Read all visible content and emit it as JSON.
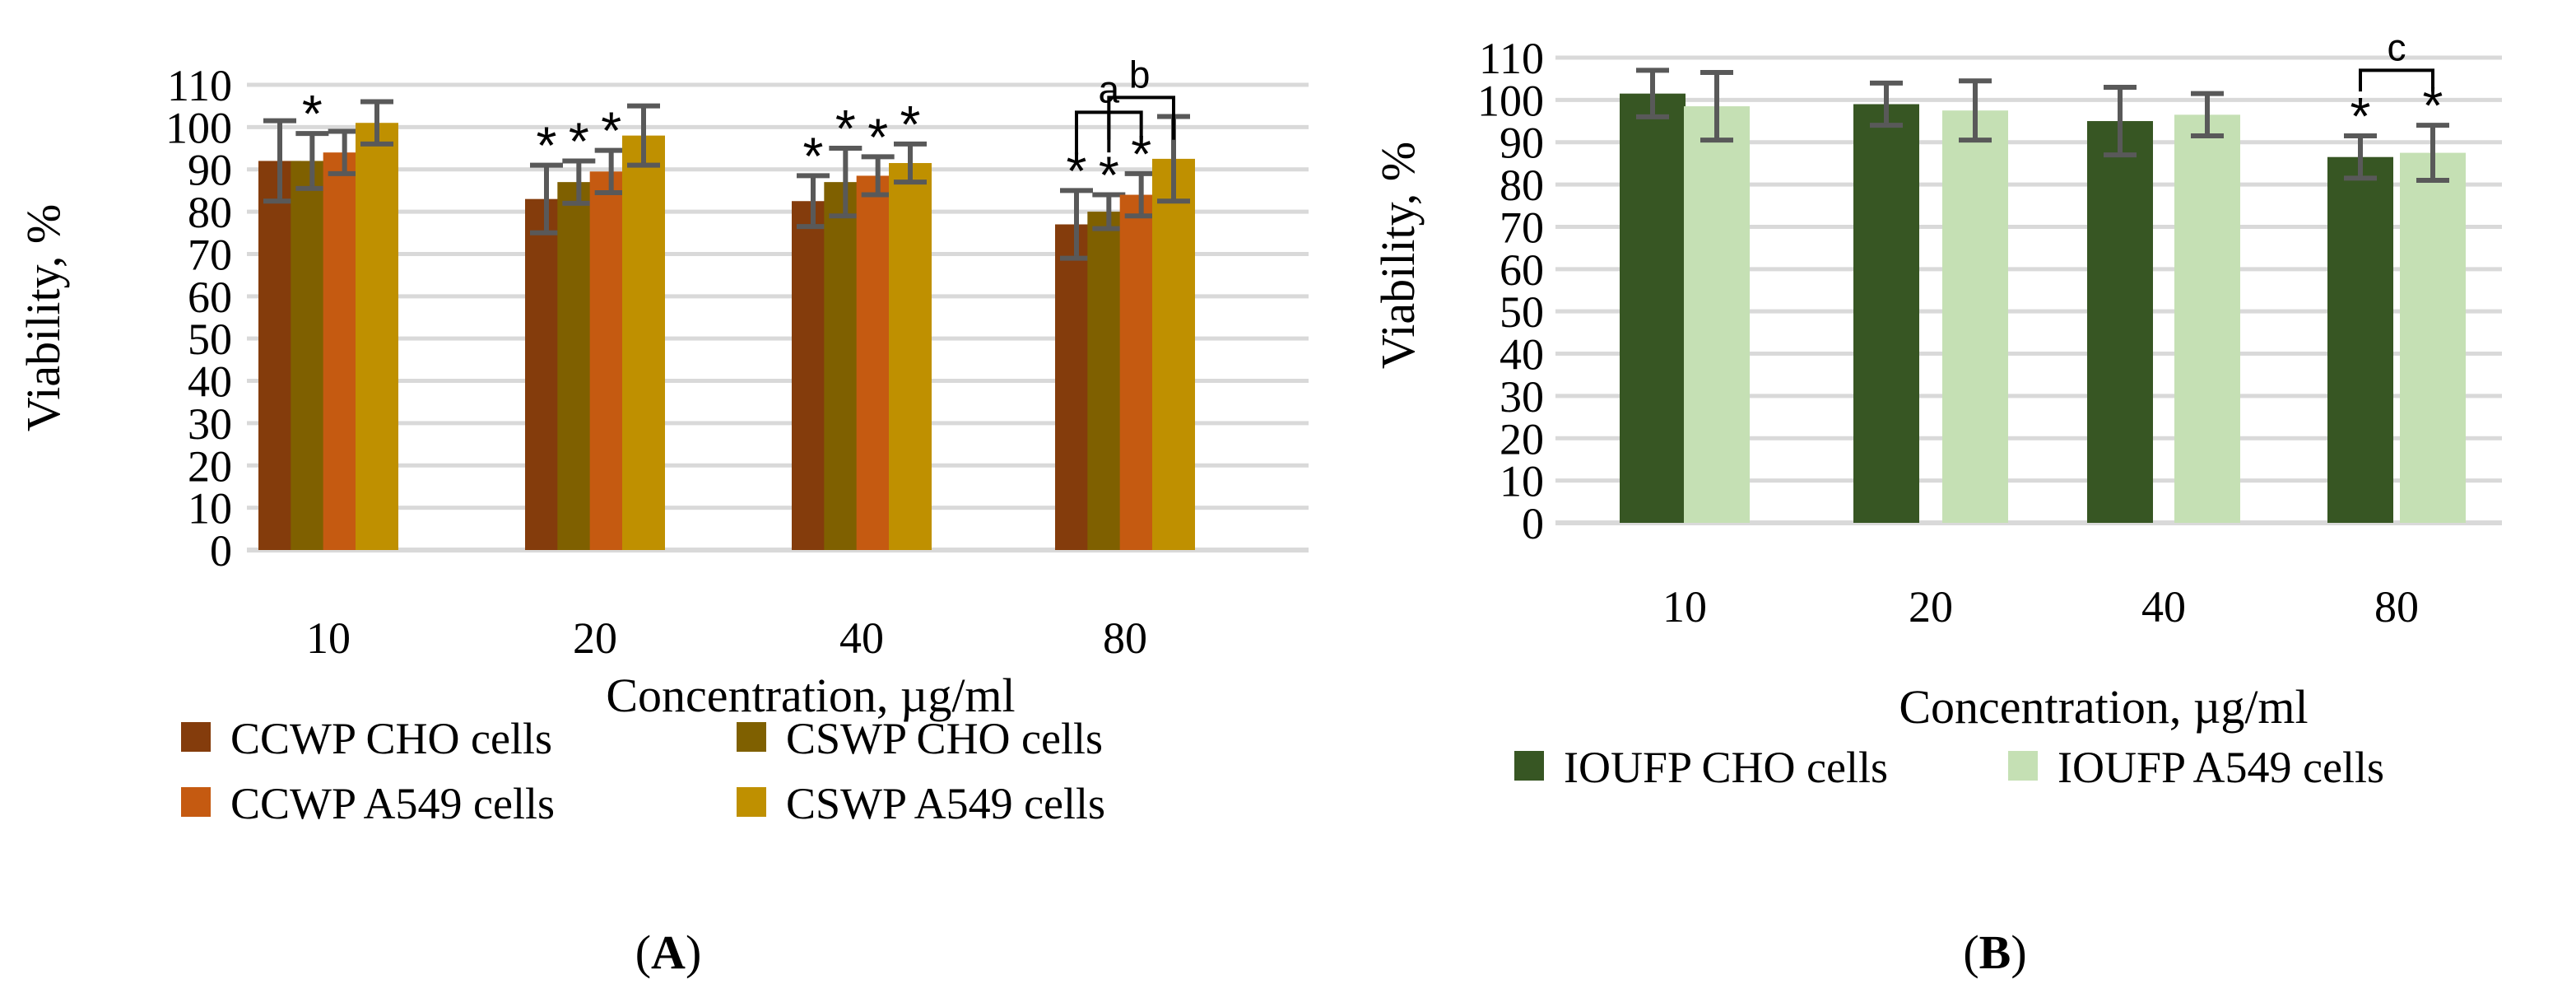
{
  "colors": {
    "grid": "#d9d9d9",
    "error_bar": "#595959",
    "text": "#000000"
  },
  "chart_data": [
    {
      "panel": "A",
      "type": "bar",
      "panel_label": "A",
      "xlabel": "Concentration, µg/ml",
      "ylabel": "Viability, %",
      "ylim": [
        0,
        110
      ],
      "yticks": [
        "0",
        "10",
        "20",
        "30",
        "40",
        "50",
        "60",
        "70",
        "80",
        "90",
        "100",
        "110"
      ],
      "grid": true,
      "legend_position": "bottom",
      "categories": [
        "10",
        "20",
        "40",
        "80"
      ],
      "series": [
        {
          "name": "CCWP CHO cells",
          "color": "#843c0c",
          "values": [
            92,
            83,
            82.5,
            77
          ],
          "errors": [
            9.5,
            8,
            6,
            8
          ],
          "significant": [
            false,
            true,
            true,
            true
          ]
        },
        {
          "name": "CSWP CHO cells",
          "color": "#7f6000",
          "values": [
            92,
            87,
            87,
            80
          ],
          "errors": [
            6.5,
            5,
            8,
            4
          ],
          "significant": [
            true,
            true,
            true,
            true
          ]
        },
        {
          "name": "CCWP A549 cells",
          "color": "#c55a11",
          "values": [
            94,
            89.5,
            88.5,
            84
          ],
          "errors": [
            5,
            5,
            4.5,
            5
          ],
          "significant": [
            false,
            true,
            true,
            true
          ]
        },
        {
          "name": "CSWP A549 cells",
          "color": "#bf9000",
          "values": [
            101,
            98,
            91.5,
            92.5
          ],
          "errors": [
            5,
            7,
            4.5,
            10
          ],
          "significant": [
            false,
            false,
            true,
            false
          ]
        }
      ],
      "significance_marker": "*",
      "brackets": [
        {
          "label": "a",
          "category": "80",
          "from_series": 0,
          "to_series": 2,
          "middle_series": 1
        },
        {
          "label": "b",
          "category": "80",
          "from_series": 1,
          "to_series": 3
        }
      ]
    },
    {
      "panel": "B",
      "type": "bar",
      "panel_label": "B",
      "xlabel": "Concentration, µg/ml",
      "ylabel": "Viability, %",
      "ylim": [
        0,
        110
      ],
      "yticks": [
        "0",
        "10",
        "20",
        "30",
        "40",
        "50",
        "60",
        "70",
        "80",
        "90",
        "100",
        "110"
      ],
      "grid": true,
      "legend_position": "bottom",
      "categories": [
        "10",
        "20",
        "40",
        "80"
      ],
      "series": [
        {
          "name": "IOUFP CHO cells",
          "color": "#375623",
          "values": [
            101.5,
            99,
            95,
            86.5
          ],
          "errors": [
            5.5,
            5,
            8,
            5
          ],
          "significant": [
            false,
            false,
            false,
            true
          ]
        },
        {
          "name": "IOUFP A549 cells",
          "color": "#c5e0b4",
          "values": [
            98.5,
            97.5,
            96.5,
            87.5
          ],
          "errors": [
            8,
            7,
            5,
            6.5
          ],
          "significant": [
            false,
            false,
            false,
            true
          ]
        }
      ],
      "significance_marker": "*",
      "brackets": [
        {
          "label": "c",
          "category": "80",
          "from_series": 0,
          "to_series": 1
        }
      ]
    }
  ]
}
